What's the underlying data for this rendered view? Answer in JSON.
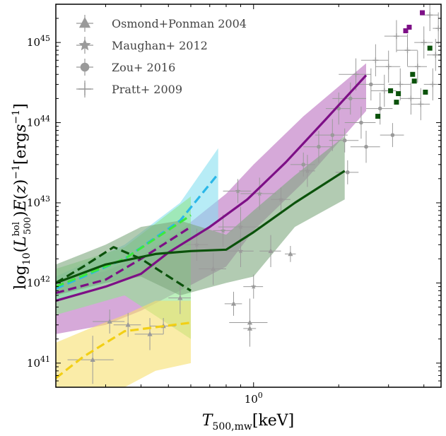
{
  "chart_data": {
    "type": "line",
    "xlabel": "T_{500,mw}[keV]",
    "ylabel": "log_{10}(L_{500}^{bol})E(z)^{-1}[erg s^{-1}]",
    "xscale": "log",
    "yscale": "log",
    "xlim": [
      0.2,
      4.6
    ],
    "ylim": [
      5e+40,
      3e+45
    ],
    "x_tick_labels": [
      {
        "x": 1.0,
        "label": "10^0"
      }
    ],
    "y_tick_labels": [
      {
        "y": 1e+41,
        "label": "10^41"
      },
      {
        "y": 1e+42,
        "label": "10^42"
      },
      {
        "y": 1e+43,
        "label": "10^43"
      },
      {
        "y": 1e+44,
        "label": "10^44"
      },
      {
        "y": 1e+45,
        "label": "10^45"
      }
    ],
    "grid": false,
    "legend_position": "top-left",
    "legend": [
      {
        "name": "Osmond+Ponman 2004",
        "marker": "triangle"
      },
      {
        "name": "Maughan+ 2012",
        "marker": "star"
      },
      {
        "name": "Zou+ 2016",
        "marker": "circle"
      },
      {
        "name": "Pratt+ 2009",
        "marker": "plus"
      }
    ],
    "bands": [
      {
        "color": "#ba6fc0",
        "x": [
          0.2,
          0.3,
          0.4,
          0.55,
          0.8,
          1.0,
          1.5,
          2.5
        ],
        "lower": [
          2.3e+41,
          3e+41,
          4.5e+41,
          8e+41,
          1.6e+42,
          4.5e+42,
          1.8e+43,
          1.4e+44
        ],
        "upper": [
          1.1e+42,
          1.4e+42,
          2.2e+42,
          4.5e+42,
          1.3e+43,
          3e+43,
          1.2e+44,
          5.5e+44
        ]
      },
      {
        "color": "#87dff0",
        "x": [
          0.2,
          0.35,
          0.55,
          0.75
        ],
        "lower": [
          6e+41,
          1.2e+42,
          2.8e+42,
          6e+42
        ],
        "upper": [
          1.2e+42,
          3e+42,
          1e+43,
          4.8e+43
        ]
      },
      {
        "color": "#8fe68f",
        "x": [
          0.2,
          0.35,
          0.6
        ],
        "lower": [
          4e+41,
          7e+41,
          2e+41
        ],
        "upper": [
          1.5e+42,
          2.8e+42,
          1.2e+43
        ]
      },
      {
        "color": "#7fa97f",
        "x": [
          0.2,
          0.3,
          0.4,
          0.55,
          0.8,
          1.0,
          1.4,
          2.1
        ],
        "lower": [
          7e+41,
          1e+42,
          1.2e+42,
          7e+41,
          1e+42,
          1.2e+42,
          5e+42,
          1.1e+43
        ],
        "upper": [
          1.7e+42,
          3e+42,
          5e+42,
          6e+42,
          4e+42,
          8e+42,
          2.2e+43,
          6.8e+43
        ]
      },
      {
        "color": "#f7df6e",
        "x": [
          0.2,
          0.27,
          0.35,
          0.45,
          0.6
        ],
        "lower": [
          4e+40,
          4e+40,
          5e+40,
          8e+40,
          1e+41
        ],
        "upper": [
          1.8e+41,
          2.8e+41,
          4e+41,
          6e+41,
          6e+41
        ]
      }
    ],
    "series": [
      {
        "color": "#7d0f86",
        "dash": false,
        "x": [
          0.2,
          0.3,
          0.4,
          0.5,
          0.7,
          0.95,
          1.3,
          1.8,
          2.5
        ],
        "y": [
          6e+41,
          9e+41,
          1.3e+42,
          2.4e+42,
          5e+42,
          1.1e+43,
          3.2e+43,
          1.1e+44,
          3.9e+44
        ]
      },
      {
        "color": "#7d0f86",
        "dash": true,
        "x": [
          0.2,
          0.3,
          0.4,
          0.6
        ],
        "y": [
          7.5e+41,
          1.1e+42,
          2e+42,
          5e+42
        ]
      },
      {
        "color": "#2ab7e8",
        "dash": true,
        "x": [
          0.2,
          0.35,
          0.55,
          0.75
        ],
        "y": [
          8.5e+41,
          2e+42,
          6e+42,
          2.3e+43
        ]
      },
      {
        "color": "#3ee83e",
        "dash": true,
        "x": [
          0.2,
          0.35,
          0.6
        ],
        "y": [
          9e+41,
          2e+42,
          7e+42
        ]
      },
      {
        "color": "#0b520b",
        "dash": false,
        "x": [
          0.2,
          0.3,
          0.45,
          0.6,
          0.8,
          1.0,
          1.4,
          2.1
        ],
        "y": [
          1e+42,
          1.7e+42,
          2.3e+42,
          2.5e+42,
          2.6e+42,
          4.3e+42,
          1e+43,
          2.5e+43
        ]
      },
      {
        "color": "#0b520b",
        "dash": true,
        "x": [
          0.2,
          0.25,
          0.32,
          0.4,
          0.6
        ],
        "y": [
          1e+42,
          1.6e+42,
          2.8e+42,
          2e+42,
          8e+41
        ]
      },
      {
        "color": "#f2cf15",
        "dash": true,
        "x": [
          0.2,
          0.25,
          0.35,
          0.45,
          0.6
        ],
        "y": [
          6.5e+40,
          1.2e+41,
          2.5e+41,
          2.8e+41,
          3.2e+41
        ]
      }
    ],
    "squares": [
      {
        "color": "#7d0f86",
        "points": [
          [
            3.45,
            1.4e+45
          ],
          [
            3.55,
            1.55e+45
          ],
          [
            3.95,
            2.35e+45
          ]
        ]
      },
      {
        "color": "#0b520b",
        "points": [
          [
            2.75,
            1.2e+44
          ],
          [
            3.05,
            2.5e+44
          ],
          [
            3.2,
            1.8e+44
          ],
          [
            3.25,
            2.3e+44
          ],
          [
            3.65,
            4e+44
          ],
          [
            3.7,
            3.3e+44
          ],
          [
            4.05,
            2.4e+44
          ],
          [
            4.2,
            8.5e+44
          ]
        ]
      }
    ],
    "observations": [
      {
        "x": 0.27,
        "y": 1.1e+41,
        "xerr": 0.05,
        "yerr": 0.3,
        "marker": "triangle"
      },
      {
        "x": 0.31,
        "y": 3.3e+41,
        "xerr": 0.04,
        "yerr": 0.15,
        "marker": "triangle"
      },
      {
        "x": 0.36,
        "y": 3e+41,
        "xerr": 0.04,
        "yerr": 0.15,
        "marker": "triangle"
      },
      {
        "x": 0.43,
        "y": 2.3e+41,
        "xerr": 0.05,
        "yerr": 0.2,
        "marker": "triangle"
      },
      {
        "x": 0.48,
        "y": 2.9e+41,
        "xerr": 0.05,
        "yerr": 0.1,
        "marker": "triangle"
      },
      {
        "x": 0.55,
        "y": 6.5e+41,
        "xerr": 0.05,
        "yerr": 0.2,
        "marker": "triangle"
      },
      {
        "x": 0.72,
        "y": 1.5e+42,
        "xerr": 0.08,
        "yerr": 0.2,
        "marker": "triangle"
      },
      {
        "x": 0.85,
        "y": 5.5e+41,
        "xerr": 0.06,
        "yerr": 0.15,
        "marker": "triangle"
      },
      {
        "x": 0.97,
        "y": 3.2e+41,
        "xerr": 0.15,
        "yerr": 0.3,
        "marker": "triangle"
      },
      {
        "x": 0.97,
        "y": 2.7e+41,
        "xerr": 0.05,
        "yerr": 0.1,
        "marker": "triangle"
      },
      {
        "x": 1.15,
        "y": 2.5e+42,
        "xerr": 0.1,
        "yerr": 0.2,
        "marker": "triangle"
      },
      {
        "x": 1.35,
        "y": 2.3e+42,
        "xerr": 0.06,
        "yerr": 0.1,
        "marker": "triangle"
      },
      {
        "x": 0.9,
        "y": 5e+42,
        "xerr": 0.15,
        "yerr": 0.25,
        "marker": "star"
      },
      {
        "x": 0.88,
        "y": 1.4e+43,
        "xerr": 0.1,
        "yerr": 0.15,
        "marker": "star"
      },
      {
        "x": 1.05,
        "y": 1.3e+43,
        "xerr": 0.15,
        "yerr": 0.2,
        "marker": "star"
      },
      {
        "x": 1.25,
        "y": 1.1e+43,
        "xerr": 0.1,
        "yerr": 0.15,
        "marker": "star"
      },
      {
        "x": 1.55,
        "y": 2.5e+43,
        "xerr": 0.1,
        "yerr": 0.2,
        "marker": "star"
      },
      {
        "x": 0.78,
        "y": 4.5e+42,
        "xerr": 0.06,
        "yerr": 0.2,
        "marker": "star"
      },
      {
        "x": 0.63,
        "y": 3e+42,
        "xerr": 0.06,
        "yerr": 0.2,
        "marker": "star"
      },
      {
        "x": 1.0,
        "y": 9e+41,
        "xerr": 0.08,
        "yerr": 0.15,
        "marker": "star"
      },
      {
        "x": 0.9,
        "y": 2.5e+42,
        "xerr": 0.1,
        "yerr": 0.2,
        "marker": "star"
      },
      {
        "x": 1.7,
        "y": 5e+43,
        "xerr": 0.2,
        "yerr": 0.2,
        "marker": "circle"
      },
      {
        "x": 1.9,
        "y": 7e+43,
        "xerr": 0.25,
        "yerr": 0.2,
        "marker": "circle"
      },
      {
        "x": 2.0,
        "y": 1.5e+44,
        "xerr": 0.2,
        "yerr": 0.2,
        "marker": "circle"
      },
      {
        "x": 2.2,
        "y": 2e+44,
        "xerr": 0.3,
        "yerr": 0.2,
        "marker": "circle"
      },
      {
        "x": 2.4,
        "y": 1e+44,
        "xerr": 0.3,
        "yerr": 0.2,
        "marker": "circle"
      },
      {
        "x": 2.6,
        "y": 3e+44,
        "xerr": 0.3,
        "yerr": 0.2,
        "marker": "circle"
      },
      {
        "x": 2.1,
        "y": 6e+43,
        "xerr": 0.25,
        "yerr": 0.15,
        "marker": "circle"
      },
      {
        "x": 2.8,
        "y": 1.5e+44,
        "xerr": 0.3,
        "yerr": 0.2,
        "marker": "circle"
      },
      {
        "x": 2.15,
        "y": 2.4e+43,
        "xerr": 0.2,
        "yerr": 0.15,
        "marker": "circle"
      },
      {
        "x": 2.5,
        "y": 5e+43,
        "xerr": 0.3,
        "yerr": 0.2,
        "marker": "circle"
      },
      {
        "x": 3.1,
        "y": 7e+43,
        "xerr": 0.3,
        "yerr": 0.15,
        "marker": "circle"
      },
      {
        "x": 1.5,
        "y": 3e+43,
        "xerr": 0.15,
        "yerr": 0.15,
        "marker": "circle"
      },
      {
        "x": 2.3,
        "y": 4e+44,
        "xerr": 0.3,
        "yerr": 0.2,
        "marker": "plus"
      },
      {
        "x": 2.7,
        "y": 6e+44,
        "xerr": 0.3,
        "yerr": 0.2,
        "marker": "plus"
      },
      {
        "x": 3.0,
        "y": 5e+44,
        "xerr": 0.3,
        "yerr": 0.2,
        "marker": "plus"
      },
      {
        "x": 3.3,
        "y": 3e+44,
        "xerr": 0.3,
        "yerr": 0.2,
        "marker": "plus"
      },
      {
        "x": 3.5,
        "y": 8e+44,
        "xerr": 0.3,
        "yerr": 0.2,
        "marker": "plus"
      },
      {
        "x": 3.8,
        "y": 5e+44,
        "xerr": 0.3,
        "yerr": 0.2,
        "marker": "plus"
      },
      {
        "x": 4.0,
        "y": 1e+45,
        "xerr": 0.3,
        "yerr": 0.2,
        "marker": "plus"
      },
      {
        "x": 4.2,
        "y": 2.2e+45,
        "xerr": 0.3,
        "yerr": 0.2,
        "marker": "plus"
      },
      {
        "x": 4.4,
        "y": 7e+44,
        "xerr": 0.3,
        "yerr": 0.2,
        "marker": "plus"
      },
      {
        "x": 3.9,
        "y": 1.7e+44,
        "xerr": 0.3,
        "yerr": 0.2,
        "marker": "plus"
      },
      {
        "x": 4.3,
        "y": 3e+44,
        "xerr": 0.3,
        "yerr": 0.2,
        "marker": "plus"
      },
      {
        "x": 3.6,
        "y": 2e+44,
        "xerr": 0.3,
        "yerr": 0.2,
        "marker": "plus"
      },
      {
        "x": 3.2,
        "y": 1.2e+45,
        "xerr": 0.3,
        "yerr": 0.2,
        "marker": "plus"
      },
      {
        "x": 4.5,
        "y": 1.5e+45,
        "xerr": 0.2,
        "yerr": 0.2,
        "marker": "plus"
      },
      {
        "x": 2.9,
        "y": 2.5e+44,
        "xerr": 0.3,
        "yerr": 0.2,
        "marker": "plus"
      }
    ]
  }
}
